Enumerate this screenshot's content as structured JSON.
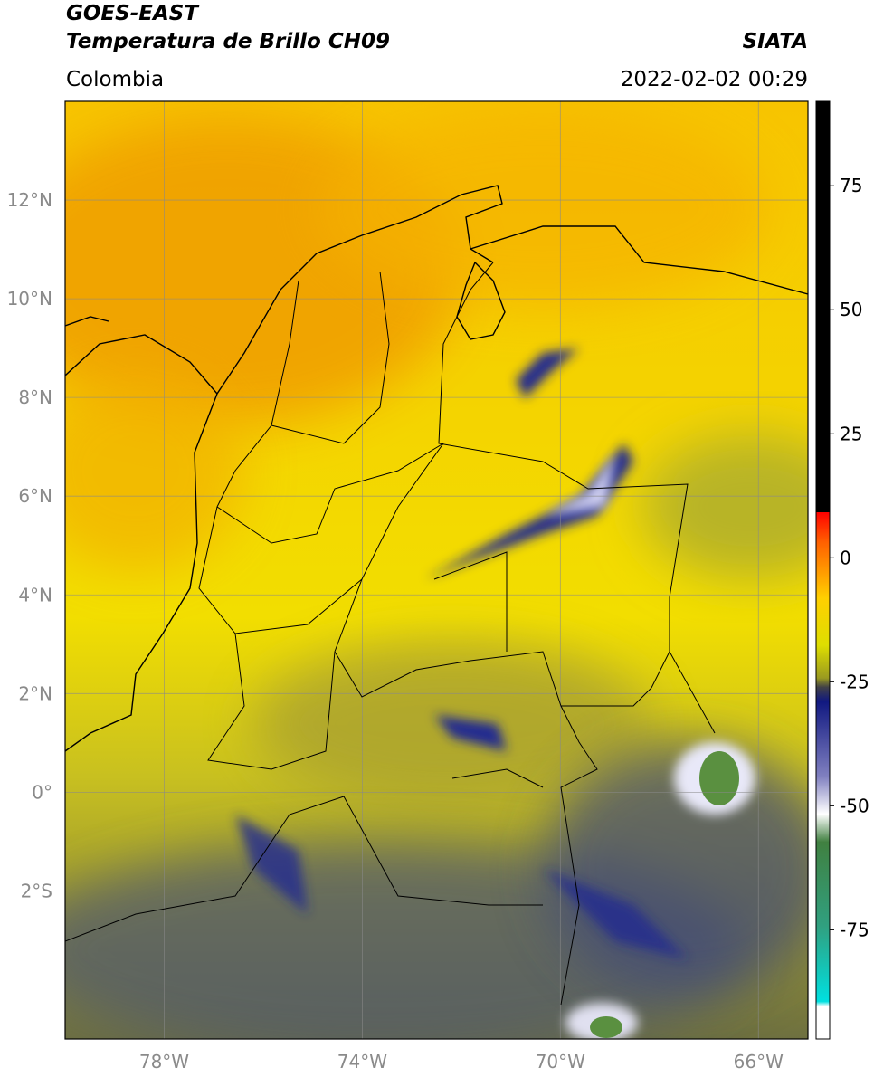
{
  "header": {
    "title": "GOES-EAST",
    "subtitle": "Temperatura de Brillo CH09",
    "region": "Colombia",
    "source": "SIATA",
    "timestamp": "2022-02-02 00:29"
  },
  "map": {
    "xlim": [
      -80,
      -65
    ],
    "ylim": [
      -5,
      14
    ],
    "xticks": [
      {
        "value": -78,
        "label": "78°W"
      },
      {
        "value": -74,
        "label": "74°W"
      },
      {
        "value": -70,
        "label": "70°W"
      },
      {
        "value": -66,
        "label": "66°W"
      }
    ],
    "yticks": [
      {
        "value": 12,
        "label": "12°N"
      },
      {
        "value": 10,
        "label": "10°N"
      },
      {
        "value": 8,
        "label": "8°N"
      },
      {
        "value": 6,
        "label": "6°N"
      },
      {
        "value": 4,
        "label": "4°N"
      },
      {
        "value": 2,
        "label": "2°N"
      },
      {
        "value": 0,
        "label": "0°"
      },
      {
        "value": -2,
        "label": "2°S"
      }
    ],
    "grid": true
  },
  "colorbar": {
    "lim": [
      -97,
      92
    ],
    "ticks": [
      75,
      50,
      25,
      0,
      -25,
      -50,
      -75
    ]
  }
}
